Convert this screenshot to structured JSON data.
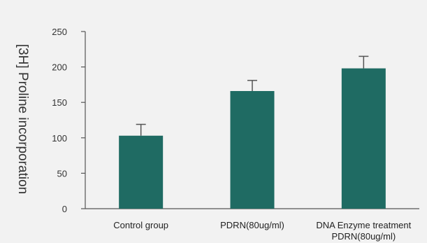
{
  "chart_data": {
    "type": "bar",
    "categories": [
      [
        "Control group"
      ],
      [
        "PDRN(80ug/ml)"
      ],
      [
        "DNA Enzyme treatment",
        "PDRN(80ug/ml)"
      ]
    ],
    "values": [
      103,
      166,
      198
    ],
    "error_upper": [
      119,
      181,
      215
    ],
    "ylabel": "[3H] Proline incorporation",
    "xlabel": "",
    "ylim": [
      0,
      250
    ],
    "yticks": [
      0,
      50,
      100,
      150,
      200,
      250
    ],
    "grid": false,
    "legend": "none",
    "bar_color": "#1f6b63",
    "axis_color": "#555555"
  }
}
